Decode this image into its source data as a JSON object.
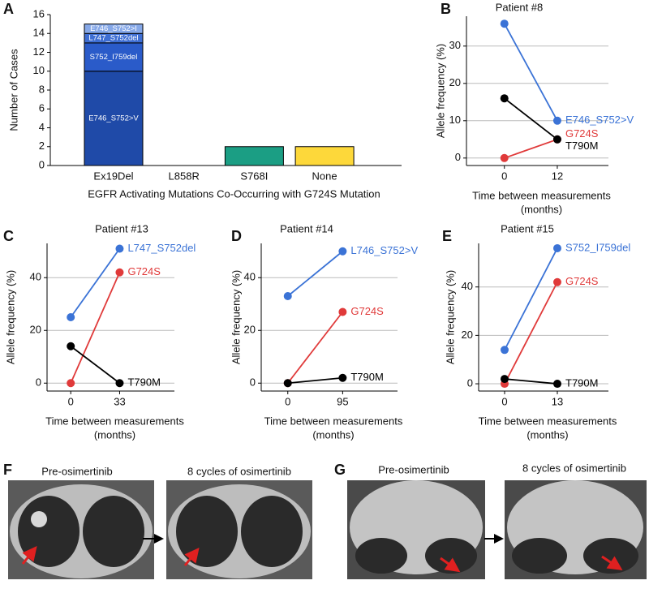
{
  "chart_data": [
    {
      "panel": "A",
      "type": "stacked-bar",
      "ylabel": "Number of Cases",
      "xlabel": "EGFR Activating Mutations Co-Occurring with G724S Mutation",
      "categories": [
        "Ex19Del",
        "L858R",
        "S768I",
        "None"
      ],
      "series": [
        {
          "name": "E746_S752>V",
          "color": "#1f4aa8",
          "values": [
            10,
            null,
            null,
            null
          ]
        },
        {
          "name": "S752_I759del",
          "color": "#2a5bc9",
          "values": [
            3,
            null,
            null,
            null
          ]
        },
        {
          "name": "L747_S752del",
          "color": "#3f6fd4",
          "values": [
            1,
            null,
            null,
            null
          ]
        },
        {
          "name": "E746_S752>I",
          "color": "#86a8e8",
          "values": [
            1,
            null,
            null,
            null
          ]
        }
      ],
      "values": [
        null,
        0,
        2,
        2
      ],
      "colors": [
        null,
        "#1f4aa8",
        "#1b9e84",
        "#fdd83a"
      ],
      "ylim": [
        0,
        16
      ],
      "yticks": [
        0,
        2,
        4,
        6,
        8,
        10,
        12,
        14,
        16
      ]
    },
    {
      "panel": "B",
      "type": "line",
      "title": "Patient #8",
      "ylabel": "Allele frequency (%)",
      "xlabel": [
        "Time between measurements",
        "(months)"
      ],
      "x": [
        0,
        12
      ],
      "xlim": [
        -8.6,
        23.6
      ],
      "xticks": [
        0,
        12
      ],
      "ylim": [
        -2,
        38
      ],
      "yticks": [
        0,
        10,
        20,
        30
      ],
      "grid": true,
      "series": [
        {
          "name": "E746_S752>V",
          "color": "#3b73d6",
          "values": [
            36,
            10
          ]
        },
        {
          "name": "G724S",
          "color": "#e03a3a",
          "values": [
            0,
            5
          ]
        },
        {
          "name": "T790M",
          "color": "#000000",
          "values": [
            16,
            5
          ]
        }
      ]
    },
    {
      "panel": "C",
      "type": "line",
      "title": "Patient #13",
      "ylabel": "Allele frequency (%)",
      "xlabel": [
        "Time between measurements",
        "(months)"
      ],
      "x": [
        0,
        33
      ],
      "xlim": [
        -16,
        70
      ],
      "xticks": [
        0,
        33
      ],
      "ylim": [
        -3,
        53
      ],
      "yticks": [
        0,
        20,
        40
      ],
      "grid": true,
      "series": [
        {
          "name": "L747_S752del",
          "color": "#3b73d6",
          "values": [
            25,
            51
          ]
        },
        {
          "name": "G724S",
          "color": "#e03a3a",
          "values": [
            0,
            42
          ]
        },
        {
          "name": "T790M",
          "color": "#000000",
          "values": [
            14,
            0
          ]
        }
      ]
    },
    {
      "panel": "D",
      "type": "line",
      "title": "Patient #14",
      "ylabel": "Allele frequency (%)",
      "xlabel": [
        "Time between measurements",
        "(months)"
      ],
      "x": [
        0,
        95
      ],
      "xlim": [
        -46,
        190
      ],
      "xticks": [
        0,
        95
      ],
      "ylim": [
        -3,
        53
      ],
      "yticks": [
        0,
        20,
        40
      ],
      "grid": true,
      "series": [
        {
          "name": "L746_S752>V",
          "color": "#3b73d6",
          "values": [
            33,
            50
          ]
        },
        {
          "name": "G724S",
          "color": "#e03a3a",
          "values": [
            0,
            27
          ]
        },
        {
          "name": "T790M",
          "color": "#000000",
          "values": [
            0,
            2
          ]
        }
      ]
    },
    {
      "panel": "E",
      "type": "line",
      "title": "Patient #15",
      "ylabel": "Allele frequency (%)",
      "xlabel": [
        "Time between measurements",
        "(months)"
      ],
      "x": [
        0,
        13
      ],
      "xlim": [
        -6.4,
        25.6
      ],
      "xticks": [
        0,
        13
      ],
      "ylim": [
        -3,
        58
      ],
      "yticks": [
        0,
        20,
        40
      ],
      "grid": true,
      "series": [
        {
          "name": "S752_I759del",
          "color": "#3b73d6",
          "values": [
            14,
            56
          ]
        },
        {
          "name": "G724S",
          "color": "#e03a3a",
          "values": [
            0,
            42
          ]
        },
        {
          "name": "T790M",
          "color": "#000000",
          "values": [
            2,
            0
          ]
        }
      ]
    }
  ],
  "figures": [
    {
      "panel": "F",
      "captions": [
        "Pre-osimertinib",
        "8 cycles of osimertinib"
      ]
    },
    {
      "panel": "G",
      "captions": [
        "Pre-osimertinib",
        "8 cycles of osimertinib"
      ]
    }
  ]
}
